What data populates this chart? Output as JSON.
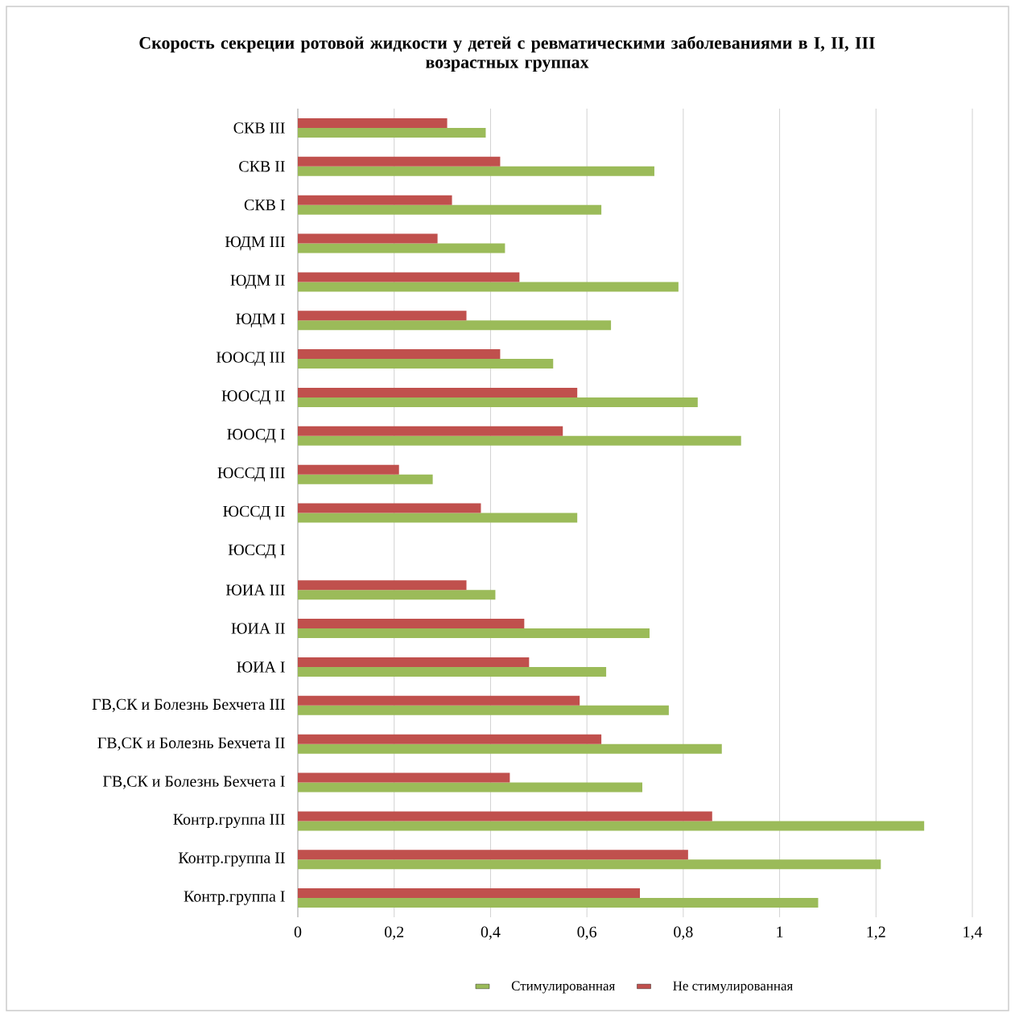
{
  "chart_data": {
    "type": "bar",
    "orientation": "horizontal",
    "title": "Скорость секреции ротовой жидкости у детей с ревматическими заболеваниями в I, II, III возрастных группах",
    "categories": [
      "СКВ III",
      "СКВ II",
      "СКВ I",
      "ЮДМ III",
      "ЮДМ II",
      "ЮДМ I",
      "ЮОСД III",
      "ЮОСД II",
      "ЮОСД I",
      "ЮССД III",
      "ЮССД II",
      "ЮССД I",
      "ЮИА III",
      "ЮИА II",
      "ЮИА I",
      "ГВ,СК и Болезнь Бехчета III",
      "ГВ,СК и Болезнь Бехчета II",
      "ГВ,СК и Болезнь Бехчета I",
      "Контр.группа III",
      "Контр.группа II",
      "Контр.группа I"
    ],
    "series": [
      {
        "name": "Стимулированная",
        "color": "#9bbb59",
        "values": [
          0.39,
          0.74,
          0.63,
          0.43,
          0.79,
          0.65,
          0.53,
          0.83,
          0.92,
          0.28,
          0.58,
          null,
          0.41,
          0.73,
          0.64,
          0.77,
          0.88,
          0.715,
          1.3,
          1.21,
          1.08
        ]
      },
      {
        "name": "Не стимулированная",
        "color": "#c0504d",
        "values": [
          0.31,
          0.42,
          0.32,
          0.29,
          0.46,
          0.35,
          0.42,
          0.58,
          0.55,
          0.21,
          0.38,
          null,
          0.35,
          0.47,
          0.48,
          0.585,
          0.63,
          0.44,
          0.86,
          0.81,
          0.71
        ]
      }
    ],
    "xlim": [
      0,
      1.4
    ],
    "xticks": [
      0,
      {
        "value": 0.2,
        "label": "0,2"
      },
      {
        "value": 0.4,
        "label": "0,4"
      },
      {
        "value": 0.6,
        "label": "0,6"
      },
      {
        "value": 0.8,
        "label": "0,8"
      },
      1,
      {
        "value": 1.2,
        "label": "1,2"
      },
      {
        "value": 1.4,
        "label": "1,4"
      }
    ],
    "grid": "x",
    "legend": "bottom"
  }
}
